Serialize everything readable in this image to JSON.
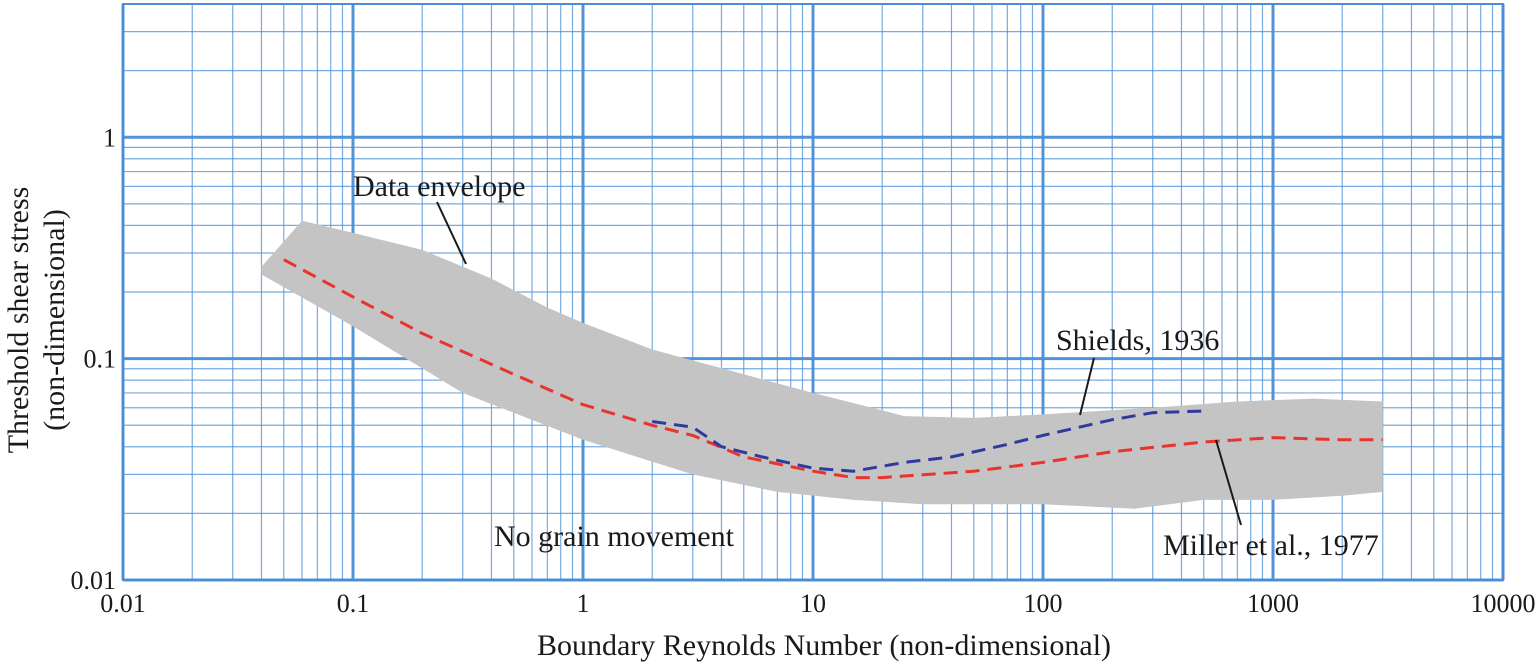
{
  "chart_data": {
    "type": "line",
    "title": "",
    "xlabel": "Boundary Reynolds Number (non-dimensional)",
    "ylabel_line1": "Threshold shear stress",
    "ylabel_line2": "(non-dimensional)",
    "x_scale": "log",
    "y_scale": "log",
    "xlim": [
      0.01,
      10000
    ],
    "ylim": [
      0.01,
      4
    ],
    "grid": true,
    "x_ticks": [
      0.01,
      0.1,
      1,
      10,
      100,
      1000,
      10000
    ],
    "x_tick_labels": [
      "0.01",
      "0.1",
      "1",
      "10",
      "100",
      "1000",
      "10000"
    ],
    "y_ticks": [
      0.01,
      0.1,
      1
    ],
    "y_tick_labels": [
      "0.01",
      "0.1",
      "1"
    ],
    "colors": {
      "grid": "#4a8fd6",
      "envelope": "#c4c4c4",
      "shields": "#2e3a9e",
      "miller": "#e8342e",
      "text": "#1a1a1a"
    },
    "envelope": {
      "name": "Data envelope",
      "upper": [
        {
          "x": 0.04,
          "y": 0.26
        },
        {
          "x": 0.06,
          "y": 0.42
        },
        {
          "x": 0.1,
          "y": 0.37
        },
        {
          "x": 0.2,
          "y": 0.31
        },
        {
          "x": 0.4,
          "y": 0.23
        },
        {
          "x": 0.7,
          "y": 0.17
        },
        {
          "x": 1,
          "y": 0.145
        },
        {
          "x": 2,
          "y": 0.11
        },
        {
          "x": 5,
          "y": 0.085
        },
        {
          "x": 10,
          "y": 0.07
        },
        {
          "x": 25,
          "y": 0.055
        },
        {
          "x": 50,
          "y": 0.054
        },
        {
          "x": 100,
          "y": 0.056
        },
        {
          "x": 300,
          "y": 0.06
        },
        {
          "x": 700,
          "y": 0.064
        },
        {
          "x": 1500,
          "y": 0.066
        },
        {
          "x": 3000,
          "y": 0.064
        }
      ],
      "lower": [
        {
          "x": 3000,
          "y": 0.025
        },
        {
          "x": 2000,
          "y": 0.024
        },
        {
          "x": 1000,
          "y": 0.023
        },
        {
          "x": 500,
          "y": 0.023
        },
        {
          "x": 250,
          "y": 0.021
        },
        {
          "x": 100,
          "y": 0.022
        },
        {
          "x": 30,
          "y": 0.022
        },
        {
          "x": 15,
          "y": 0.023
        },
        {
          "x": 7,
          "y": 0.025
        },
        {
          "x": 3,
          "y": 0.03
        },
        {
          "x": 1,
          "y": 0.043
        },
        {
          "x": 0.3,
          "y": 0.07
        },
        {
          "x": 0.1,
          "y": 0.14
        },
        {
          "x": 0.04,
          "y": 0.24
        }
      ]
    },
    "series": [
      {
        "name": "Shields, 1936",
        "x": [
          2,
          3,
          4,
          6,
          10,
          15,
          25,
          40,
          70,
          100,
          200,
          300,
          500
        ],
        "y": [
          0.052,
          0.049,
          0.04,
          0.036,
          0.032,
          0.031,
          0.034,
          0.036,
          0.041,
          0.045,
          0.053,
          0.057,
          0.058
        ]
      },
      {
        "name": "Miller et al., 1977",
        "x": [
          0.05,
          0.1,
          0.2,
          0.5,
          1,
          2,
          3,
          5,
          10,
          15,
          20,
          50,
          100,
          200,
          500,
          1000,
          2000,
          3000
        ],
        "y": [
          0.28,
          0.19,
          0.13,
          0.085,
          0.062,
          0.05,
          0.045,
          0.036,
          0.031,
          0.029,
          0.029,
          0.031,
          0.034,
          0.038,
          0.042,
          0.044,
          0.043,
          0.043
        ]
      }
    ],
    "annotations": {
      "data_envelope": "Data envelope",
      "shields": "Shields, 1936",
      "miller": "Miller et al., 1977",
      "no_movement": "No grain movement"
    }
  }
}
